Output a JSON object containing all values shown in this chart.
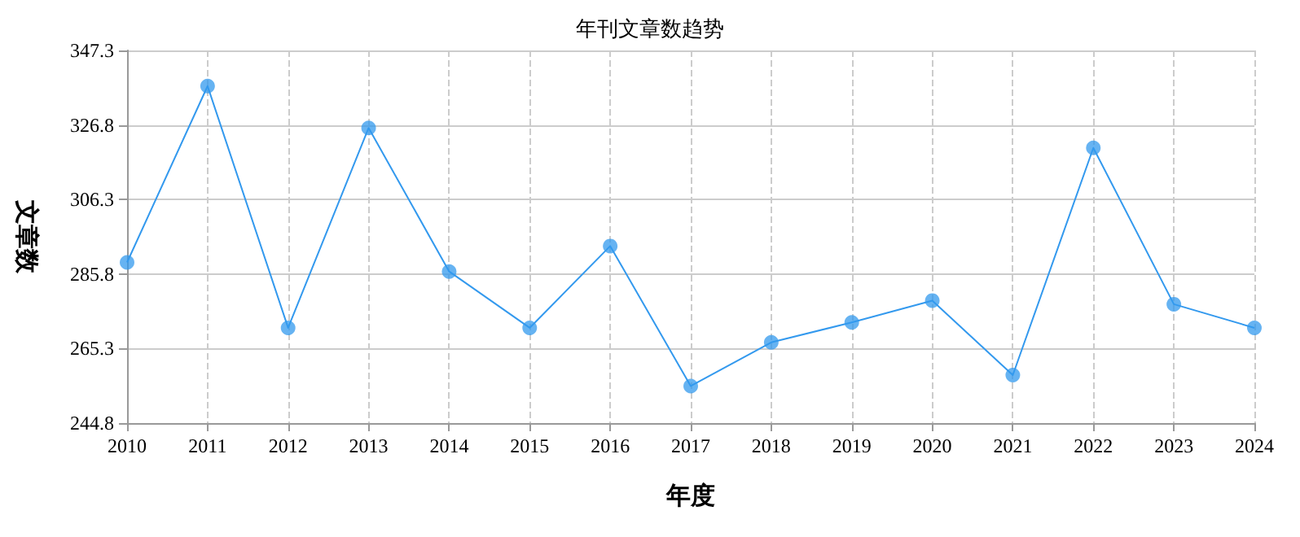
{
  "chart_data": {
    "type": "line",
    "title": "年刊文章数趋势",
    "xlabel": "年度",
    "ylabel": "文章数",
    "categories": [
      "2010",
      "2011",
      "2012",
      "2013",
      "2014",
      "2015",
      "2016",
      "2017",
      "2018",
      "2019",
      "2020",
      "2021",
      "2022",
      "2023",
      "2024"
    ],
    "series": [
      {
        "color": "#3399ee",
        "values": [
          289,
          337.5,
          271,
          326,
          286.5,
          271,
          293.5,
          255,
          267,
          272.5,
          278.5,
          258,
          320.5,
          277.5,
          271
        ]
      }
    ],
    "ylim": [
      244.8,
      347.3
    ],
    "yticks": [
      244.8,
      265.3,
      285.8,
      306.3,
      326.8,
      347.3
    ],
    "grid": true,
    "marker": "circle"
  }
}
